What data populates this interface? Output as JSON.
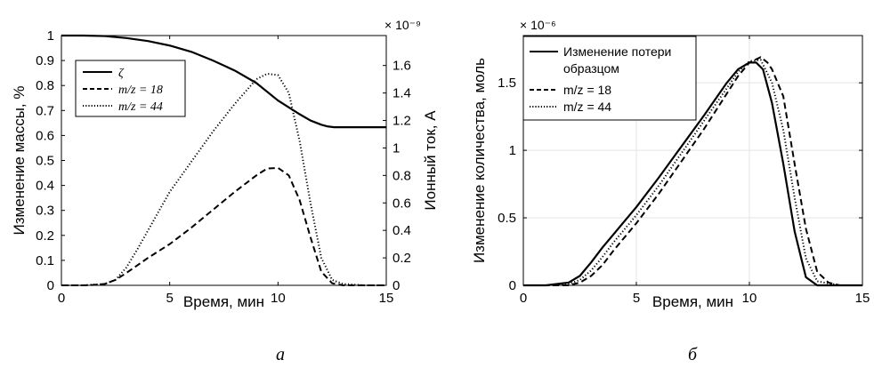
{
  "chart_data": [
    {
      "type": "line",
      "panel_label": "а",
      "xlabel": "Время, мин",
      "ylabel_left": "Изменение массы, %",
      "ylabel_right": "Ионный ток, А",
      "right_exponent": "× 10⁻⁹",
      "xlim": [
        0,
        15
      ],
      "ylim_left": [
        0,
        1
      ],
      "ylim_right": [
        0,
        1.818
      ],
      "x_ticks": [
        "0",
        "5",
        "10",
        "15"
      ],
      "y_ticks_left": [
        "0",
        "0.1",
        "0.2",
        "0.3",
        "0.4",
        "0.5",
        "0.6",
        "0.7",
        "0.8",
        "0.9",
        "1"
      ],
      "y_ticks_right": [
        "0",
        "0.2",
        "0.4",
        "0.6",
        "0.8",
        "1",
        "1.2",
        "1.4",
        "1.6"
      ],
      "grid": false,
      "legend_position": "top-left",
      "series": [
        {
          "name": "ζ",
          "axis": "left",
          "style": "solid",
          "x": [
            0,
            1,
            2,
            3,
            4,
            5,
            6,
            7,
            8,
            9,
            10,
            11,
            11.5,
            12,
            12.3,
            12.6,
            13,
            14,
            15
          ],
          "y": [
            1.0,
            1.0,
            0.998,
            0.99,
            0.978,
            0.96,
            0.935,
            0.9,
            0.86,
            0.81,
            0.74,
            0.685,
            0.66,
            0.643,
            0.636,
            0.633,
            0.633,
            0.633,
            0.633
          ]
        },
        {
          "name": "m/z = 18",
          "axis": "right",
          "style": "dashed",
          "x": [
            0,
            1,
            1.5,
            2,
            2.5,
            3,
            4,
            5,
            6,
            7,
            8,
            9,
            9.5,
            10,
            10.5,
            11,
            11.5,
            12,
            12.5,
            13,
            14,
            15
          ],
          "y": [
            0,
            0,
            0.003,
            0.01,
            0.04,
            0.09,
            0.2,
            0.3,
            0.42,
            0.55,
            0.68,
            0.8,
            0.85,
            0.855,
            0.8,
            0.62,
            0.35,
            0.1,
            0.015,
            0,
            0,
            0
          ]
        },
        {
          "name": "m/z = 44",
          "axis": "right",
          "style": "dotted",
          "x": [
            0,
            1,
            2,
            2.5,
            3,
            3.5,
            4,
            5,
            6,
            7,
            8,
            9,
            9.5,
            10,
            10.5,
            11,
            11.5,
            12,
            12.5,
            13,
            14,
            15
          ],
          "y": [
            0,
            0,
            0.01,
            0.04,
            0.13,
            0.26,
            0.4,
            0.68,
            0.9,
            1.12,
            1.32,
            1.5,
            1.54,
            1.53,
            1.4,
            1.05,
            0.6,
            0.2,
            0.04,
            0.01,
            0,
            0
          ]
        }
      ]
    },
    {
      "type": "line",
      "panel_label": "б",
      "xlabel": "Время, мин",
      "ylabel": "Изменение количества, моль",
      "y_exponent": "× 10⁻⁶",
      "xlim": [
        0,
        15
      ],
      "ylim": [
        0,
        1.85
      ],
      "x_ticks": [
        "0",
        "5",
        "10",
        "15"
      ],
      "y_ticks": [
        "0",
        "0.5",
        "1",
        "1.5"
      ],
      "grid": true,
      "legend_position": "top-left",
      "series": [
        {
          "name": "Изменение потери образцом",
          "legend_lines": [
            "Изменение потери",
            "образцом"
          ],
          "style": "solid",
          "x": [
            0,
            1,
            2,
            2.5,
            3,
            3.5,
            4,
            5,
            6,
            7,
            8,
            9,
            9.5,
            10,
            10.3,
            10.6,
            11,
            11.5,
            12,
            12.5,
            13,
            14,
            15
          ],
          "y": [
            0,
            0,
            0.02,
            0.07,
            0.17,
            0.28,
            0.38,
            0.58,
            0.8,
            1.03,
            1.26,
            1.5,
            1.6,
            1.65,
            1.65,
            1.6,
            1.35,
            0.9,
            0.4,
            0.06,
            0,
            0,
            0
          ]
        },
        {
          "name": "m/z = 18",
          "style": "dashed",
          "x": [
            0,
            1,
            2,
            2.5,
            3,
            3.5,
            4,
            5,
            6,
            7,
            8,
            9,
            9.5,
            10,
            10.5,
            10.8,
            11,
            11.5,
            12,
            12.5,
            13,
            13.5,
            14,
            15
          ],
          "y": [
            0,
            0,
            0,
            0.02,
            0.07,
            0.15,
            0.26,
            0.46,
            0.68,
            0.92,
            1.16,
            1.42,
            1.55,
            1.65,
            1.69,
            1.65,
            1.6,
            1.4,
            0.9,
            0.42,
            0.1,
            0.02,
            0,
            0
          ]
        },
        {
          "name": "m/z = 44",
          "style": "dotted",
          "x": [
            0,
            1,
            2,
            2.5,
            3,
            3.5,
            4,
            5,
            6,
            7,
            8,
            9,
            9.5,
            10,
            10.5,
            11,
            11.5,
            12,
            12.5,
            13,
            14,
            15
          ],
          "y": [
            0,
            0,
            0.01,
            0.04,
            0.11,
            0.21,
            0.32,
            0.52,
            0.74,
            0.98,
            1.22,
            1.46,
            1.58,
            1.66,
            1.67,
            1.5,
            1.15,
            0.65,
            0.2,
            0.03,
            0,
            0
          ]
        }
      ]
    }
  ]
}
